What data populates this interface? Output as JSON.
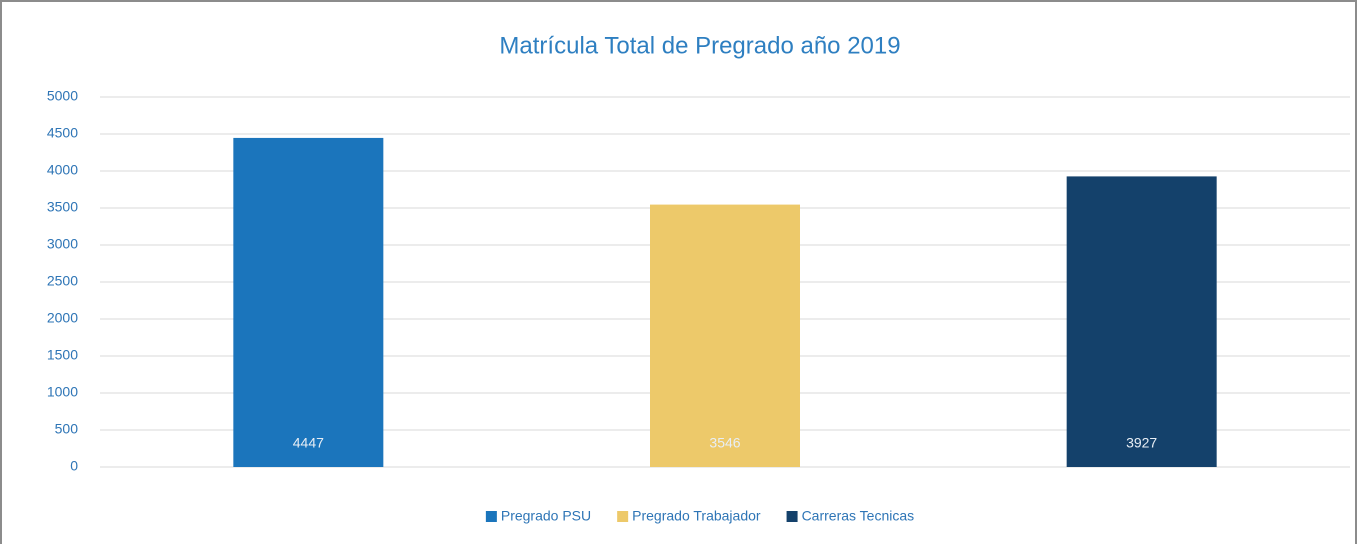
{
  "chart_data": {
    "type": "bar",
    "title": "Matrícula Total de Pregrado año 2019",
    "categories": [
      null
    ],
    "series": [
      {
        "name": "Pregrado PSU",
        "color": "#1b75bc",
        "values": [
          4447
        ]
      },
      {
        "name": "Pregrado Trabajador",
        "color": "#edc96a",
        "values": [
          3546
        ]
      },
      {
        "name": "Carreras Tecnicas",
        "color": "#14416b",
        "values": [
          3927
        ]
      }
    ],
    "ylim": [
      0,
      5000
    ],
    "yticks": [
      0,
      500,
      1000,
      1500,
      2000,
      2500,
      3000,
      3500,
      4000,
      4500,
      5000
    ],
    "grid": true,
    "legend": "bottom"
  }
}
